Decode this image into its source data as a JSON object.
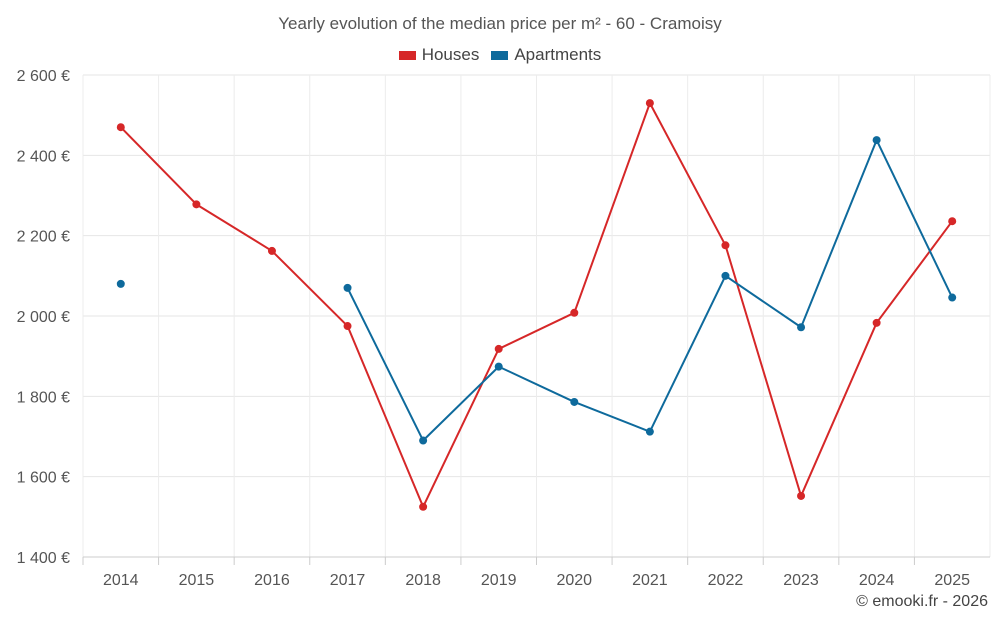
{
  "chart_data": {
    "type": "line",
    "title": "Yearly evolution of the median price per m² - 60 - Cramoisy",
    "categories": [
      "2014",
      "2015",
      "2016",
      "2017",
      "2018",
      "2019",
      "2020",
      "2021",
      "2022",
      "2023",
      "2024",
      "2025"
    ],
    "ylim": [
      1400,
      2600
    ],
    "yticks": [
      1400,
      1600,
      1800,
      2000,
      2200,
      2400,
      2600
    ],
    "ytick_labels": [
      "1 400 €",
      "1 600 €",
      "1 800 €",
      "2 000 €",
      "2 200 €",
      "2 400 €",
      "2 600 €"
    ],
    "grid": true,
    "legend_position": "top-center",
    "series": [
      {
        "name": "Houses",
        "color": "#d62728",
        "values": [
          2470,
          2278,
          2162,
          1975,
          1525,
          1918,
          2008,
          2530,
          2176,
          1552,
          1983,
          2236
        ]
      },
      {
        "name": "Apartments",
        "color": "#0e6a9c",
        "values": [
          2080,
          null,
          null,
          2070,
          1690,
          1874,
          1786,
          1712,
          2100,
          1972,
          2438,
          2046
        ]
      }
    ]
  },
  "copyright": "© emooki.fr - 2026"
}
